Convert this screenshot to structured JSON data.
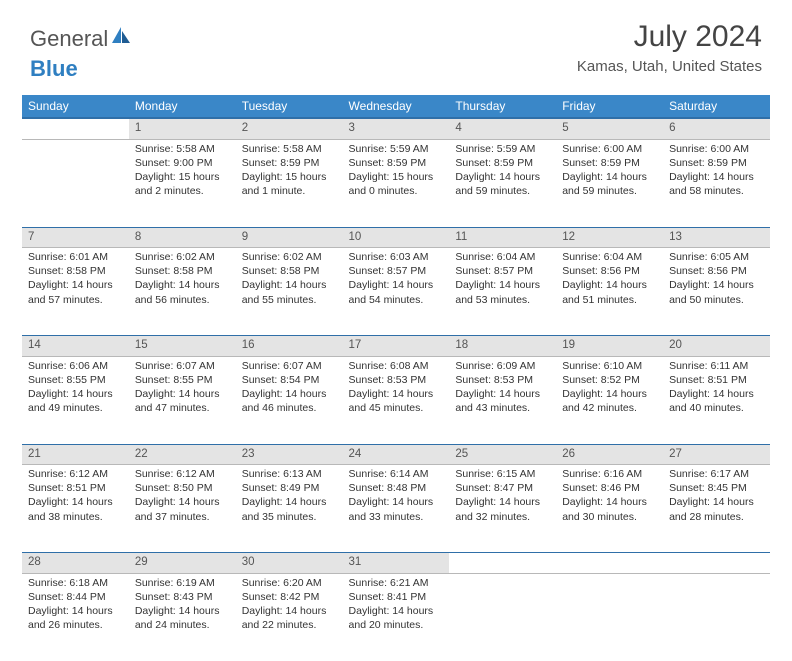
{
  "brand": {
    "part1": "General",
    "part2": "Blue"
  },
  "title": "July 2024",
  "location": "Kamas, Utah, United States",
  "colors": {
    "header_bg": "#3a87c8",
    "header_text": "#ffffff",
    "row_border": "#2f6fa8",
    "daynum_bg": "#e4e4e4",
    "cell_border": "#b8b8b8",
    "logo_blue": "#2f7fc1"
  },
  "weekdays": [
    "Sunday",
    "Monday",
    "Tuesday",
    "Wednesday",
    "Thursday",
    "Friday",
    "Saturday"
  ],
  "weeks": [
    [
      {
        "day": "",
        "sunrise": "",
        "sunset": "",
        "daylight": ""
      },
      {
        "day": "1",
        "sunrise": "Sunrise: 5:58 AM",
        "sunset": "Sunset: 9:00 PM",
        "daylight": "Daylight: 15 hours and 2 minutes."
      },
      {
        "day": "2",
        "sunrise": "Sunrise: 5:58 AM",
        "sunset": "Sunset: 8:59 PM",
        "daylight": "Daylight: 15 hours and 1 minute."
      },
      {
        "day": "3",
        "sunrise": "Sunrise: 5:59 AM",
        "sunset": "Sunset: 8:59 PM",
        "daylight": "Daylight: 15 hours and 0 minutes."
      },
      {
        "day": "4",
        "sunrise": "Sunrise: 5:59 AM",
        "sunset": "Sunset: 8:59 PM",
        "daylight": "Daylight: 14 hours and 59 minutes."
      },
      {
        "day": "5",
        "sunrise": "Sunrise: 6:00 AM",
        "sunset": "Sunset: 8:59 PM",
        "daylight": "Daylight: 14 hours and 59 minutes."
      },
      {
        "day": "6",
        "sunrise": "Sunrise: 6:00 AM",
        "sunset": "Sunset: 8:59 PM",
        "daylight": "Daylight: 14 hours and 58 minutes."
      }
    ],
    [
      {
        "day": "7",
        "sunrise": "Sunrise: 6:01 AM",
        "sunset": "Sunset: 8:58 PM",
        "daylight": "Daylight: 14 hours and 57 minutes."
      },
      {
        "day": "8",
        "sunrise": "Sunrise: 6:02 AM",
        "sunset": "Sunset: 8:58 PM",
        "daylight": "Daylight: 14 hours and 56 minutes."
      },
      {
        "day": "9",
        "sunrise": "Sunrise: 6:02 AM",
        "sunset": "Sunset: 8:58 PM",
        "daylight": "Daylight: 14 hours and 55 minutes."
      },
      {
        "day": "10",
        "sunrise": "Sunrise: 6:03 AM",
        "sunset": "Sunset: 8:57 PM",
        "daylight": "Daylight: 14 hours and 54 minutes."
      },
      {
        "day": "11",
        "sunrise": "Sunrise: 6:04 AM",
        "sunset": "Sunset: 8:57 PM",
        "daylight": "Daylight: 14 hours and 53 minutes."
      },
      {
        "day": "12",
        "sunrise": "Sunrise: 6:04 AM",
        "sunset": "Sunset: 8:56 PM",
        "daylight": "Daylight: 14 hours and 51 minutes."
      },
      {
        "day": "13",
        "sunrise": "Sunrise: 6:05 AM",
        "sunset": "Sunset: 8:56 PM",
        "daylight": "Daylight: 14 hours and 50 minutes."
      }
    ],
    [
      {
        "day": "14",
        "sunrise": "Sunrise: 6:06 AM",
        "sunset": "Sunset: 8:55 PM",
        "daylight": "Daylight: 14 hours and 49 minutes."
      },
      {
        "day": "15",
        "sunrise": "Sunrise: 6:07 AM",
        "sunset": "Sunset: 8:55 PM",
        "daylight": "Daylight: 14 hours and 47 minutes."
      },
      {
        "day": "16",
        "sunrise": "Sunrise: 6:07 AM",
        "sunset": "Sunset: 8:54 PM",
        "daylight": "Daylight: 14 hours and 46 minutes."
      },
      {
        "day": "17",
        "sunrise": "Sunrise: 6:08 AM",
        "sunset": "Sunset: 8:53 PM",
        "daylight": "Daylight: 14 hours and 45 minutes."
      },
      {
        "day": "18",
        "sunrise": "Sunrise: 6:09 AM",
        "sunset": "Sunset: 8:53 PM",
        "daylight": "Daylight: 14 hours and 43 minutes."
      },
      {
        "day": "19",
        "sunrise": "Sunrise: 6:10 AM",
        "sunset": "Sunset: 8:52 PM",
        "daylight": "Daylight: 14 hours and 42 minutes."
      },
      {
        "day": "20",
        "sunrise": "Sunrise: 6:11 AM",
        "sunset": "Sunset: 8:51 PM",
        "daylight": "Daylight: 14 hours and 40 minutes."
      }
    ],
    [
      {
        "day": "21",
        "sunrise": "Sunrise: 6:12 AM",
        "sunset": "Sunset: 8:51 PM",
        "daylight": "Daylight: 14 hours and 38 minutes."
      },
      {
        "day": "22",
        "sunrise": "Sunrise: 6:12 AM",
        "sunset": "Sunset: 8:50 PM",
        "daylight": "Daylight: 14 hours and 37 minutes."
      },
      {
        "day": "23",
        "sunrise": "Sunrise: 6:13 AM",
        "sunset": "Sunset: 8:49 PM",
        "daylight": "Daylight: 14 hours and 35 minutes."
      },
      {
        "day": "24",
        "sunrise": "Sunrise: 6:14 AM",
        "sunset": "Sunset: 8:48 PM",
        "daylight": "Daylight: 14 hours and 33 minutes."
      },
      {
        "day": "25",
        "sunrise": "Sunrise: 6:15 AM",
        "sunset": "Sunset: 8:47 PM",
        "daylight": "Daylight: 14 hours and 32 minutes."
      },
      {
        "day": "26",
        "sunrise": "Sunrise: 6:16 AM",
        "sunset": "Sunset: 8:46 PM",
        "daylight": "Daylight: 14 hours and 30 minutes."
      },
      {
        "day": "27",
        "sunrise": "Sunrise: 6:17 AM",
        "sunset": "Sunset: 8:45 PM",
        "daylight": "Daylight: 14 hours and 28 minutes."
      }
    ],
    [
      {
        "day": "28",
        "sunrise": "Sunrise: 6:18 AM",
        "sunset": "Sunset: 8:44 PM",
        "daylight": "Daylight: 14 hours and 26 minutes."
      },
      {
        "day": "29",
        "sunrise": "Sunrise: 6:19 AM",
        "sunset": "Sunset: 8:43 PM",
        "daylight": "Daylight: 14 hours and 24 minutes."
      },
      {
        "day": "30",
        "sunrise": "Sunrise: 6:20 AM",
        "sunset": "Sunset: 8:42 PM",
        "daylight": "Daylight: 14 hours and 22 minutes."
      },
      {
        "day": "31",
        "sunrise": "Sunrise: 6:21 AM",
        "sunset": "Sunset: 8:41 PM",
        "daylight": "Daylight: 14 hours and 20 minutes."
      },
      {
        "day": "",
        "sunrise": "",
        "sunset": "",
        "daylight": ""
      },
      {
        "day": "",
        "sunrise": "",
        "sunset": "",
        "daylight": ""
      },
      {
        "day": "",
        "sunrise": "",
        "sunset": "",
        "daylight": ""
      }
    ]
  ]
}
